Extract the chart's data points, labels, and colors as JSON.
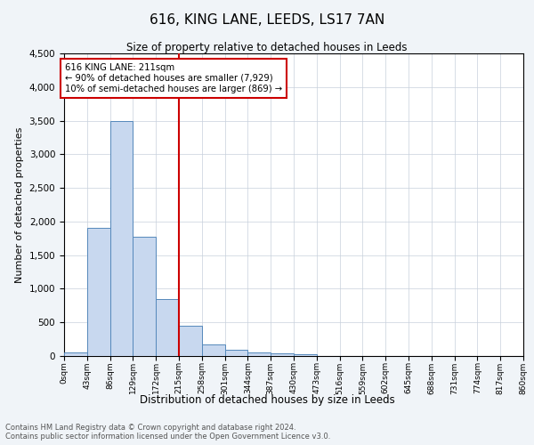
{
  "title": "616, KING LANE, LEEDS, LS17 7AN",
  "subtitle": "Size of property relative to detached houses in Leeds",
  "xlabel": "Distribution of detached houses by size in Leeds",
  "ylabel": "Number of detached properties",
  "bar_edges": [
    0,
    43,
    86,
    129,
    172,
    215,
    258,
    301,
    344,
    387,
    430,
    473,
    516,
    559,
    602,
    645,
    688,
    731,
    774,
    817,
    860
  ],
  "bar_heights": [
    50,
    1900,
    3500,
    1775,
    850,
    450,
    170,
    90,
    55,
    40,
    30,
    0,
    0,
    0,
    0,
    0,
    0,
    0,
    0,
    0
  ],
  "bar_color": "#c8d8ef",
  "bar_edge_color": "#5588bb",
  "property_line_x": 215,
  "property_line_color": "#cc0000",
  "annotation_text": "616 KING LANE: 211sqm\n← 90% of detached houses are smaller (7,929)\n10% of semi-detached houses are larger (869) →",
  "annotation_box_color": "#cc0000",
  "ylim": [
    0,
    4500
  ],
  "yticks": [
    0,
    500,
    1000,
    1500,
    2000,
    2500,
    3000,
    3500,
    4000,
    4500
  ],
  "tick_labels": [
    "0sqm",
    "43sqm",
    "86sqm",
    "129sqm",
    "172sqm",
    "215sqm",
    "258sqm",
    "301sqm",
    "344sqm",
    "387sqm",
    "430sqm",
    "473sqm",
    "516sqm",
    "559sqm",
    "602sqm",
    "645sqm",
    "688sqm",
    "731sqm",
    "774sqm",
    "817sqm",
    "860sqm"
  ],
  "footer_line1": "Contains HM Land Registry data © Crown copyright and database right 2024.",
  "footer_line2": "Contains public sector information licensed under the Open Government Licence v3.0.",
  "background_color": "#f0f4f8",
  "plot_background_color": "#ffffff",
  "grid_color": "#c8d0dc"
}
